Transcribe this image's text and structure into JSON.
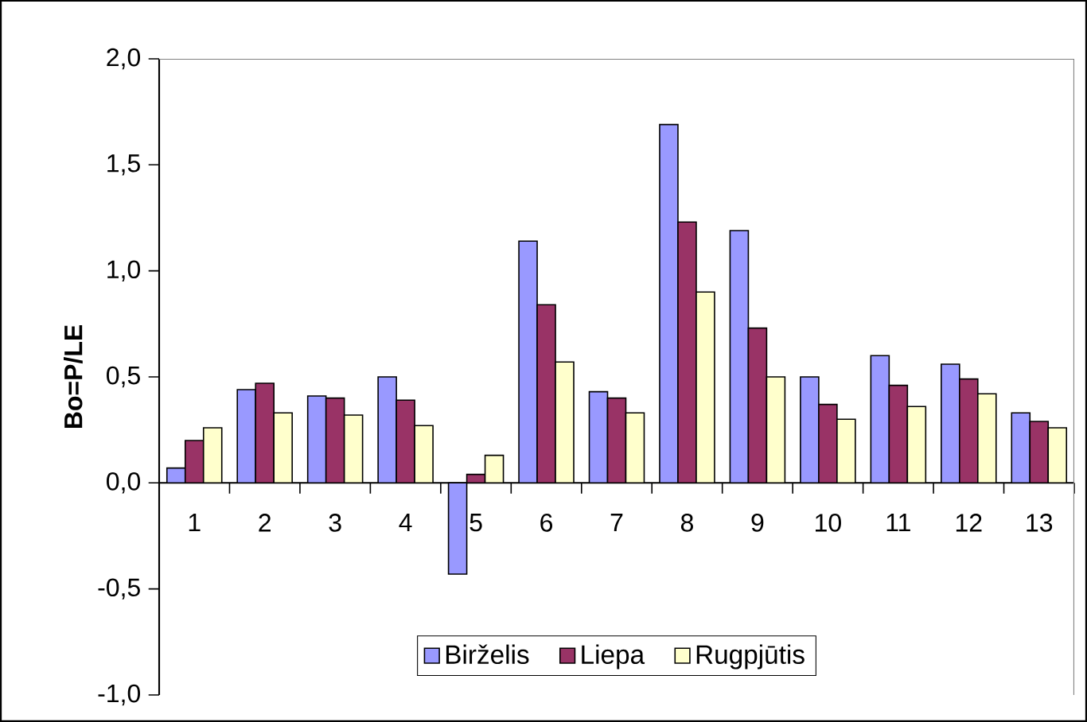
{
  "chart_data": {
    "type": "bar",
    "ylabel": "Bo=P/LE",
    "categories": [
      "1",
      "2",
      "3",
      "4",
      "5",
      "6",
      "7",
      "8",
      "9",
      "10",
      "11",
      "12",
      "13"
    ],
    "series": [
      {
        "name": "Birželis",
        "color": "#9999ff",
        "values": [
          0.07,
          0.44,
          0.41,
          0.5,
          -0.43,
          1.14,
          0.43,
          1.69,
          1.19,
          0.5,
          0.6,
          0.56,
          0.33
        ]
      },
      {
        "name": "Liepa",
        "color": "#993366",
        "values": [
          0.2,
          0.47,
          0.4,
          0.39,
          0.04,
          0.84,
          0.4,
          1.23,
          0.73,
          0.37,
          0.46,
          0.49,
          0.29
        ]
      },
      {
        "name": "Rugpjūtis",
        "color": "#ffffcc",
        "values": [
          0.26,
          0.33,
          0.32,
          0.27,
          0.13,
          0.57,
          0.33,
          0.9,
          0.5,
          0.3,
          0.36,
          0.42,
          0.26
        ]
      }
    ],
    "ylim": [
      -1,
      2
    ],
    "yticks": [
      {
        "value": -1,
        "label": "-1,0"
      },
      {
        "value": -0.5,
        "label": "-0,5"
      },
      {
        "value": 0,
        "label": "0,0"
      },
      {
        "value": 0.5,
        "label": "0,5"
      },
      {
        "value": 1,
        "label": "1,0"
      },
      {
        "value": 1.5,
        "label": "1,5"
      },
      {
        "value": 2,
        "label": "2,0"
      }
    ],
    "grid": false,
    "legend": "bottom"
  }
}
